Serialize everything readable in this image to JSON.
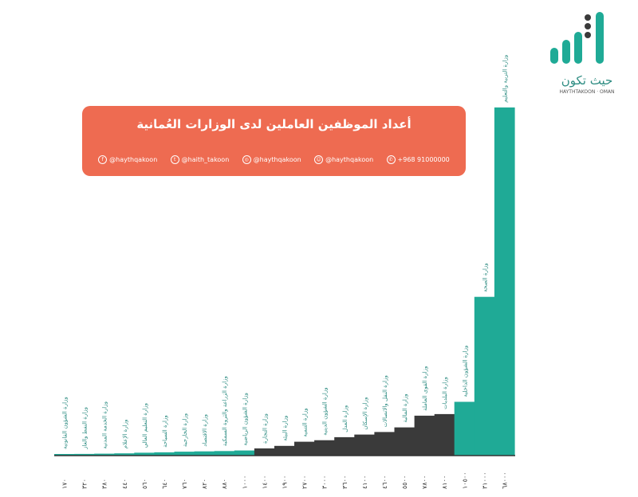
{
  "banner": {
    "title": "أعداد الموظفين العاملين لدى الوزارات العُمانية",
    "contacts": [
      {
        "icon": "whatsapp-icon",
        "text": "+968 91000000"
      },
      {
        "icon": "snapchat-icon",
        "text": "@haythqakoon"
      },
      {
        "icon": "instagram-icon",
        "text": "@haythqakoon"
      },
      {
        "icon": "twitter-icon",
        "text": "@haith_takoon"
      },
      {
        "icon": "facebook-icon",
        "text": "@haythqakoon"
      }
    ]
  },
  "logo": {
    "name": "حيث تكون",
    "sub": "HAYTHTAKOON · OMAN",
    "colors": {
      "teal": "#1faa96",
      "dark": "#3a3a3a"
    }
  },
  "chart_data": {
    "type": "bar",
    "title": "أعداد الموظفين العاملين لدى الوزارات العُمانية",
    "xlabel": "",
    "ylabel": "",
    "grid": false,
    "legend": "none",
    "colors": {
      "teal": "#1faa96",
      "dark": "#3a3a3a"
    },
    "categories": [
      "وزارة الشؤون القانونية",
      "وزارة النفط والغاز",
      "وزارة الخدمة المدنية",
      "وزارة الإعلام",
      "وزارة التعليم العالي",
      "وزارة السياحة",
      "وزارة الخارجية",
      "وزارة الاقتصاد",
      "وزارة الزراعة والثروة السمكية",
      "وزارة الشؤون الرياضية",
      "وزارة التجارة",
      "وزارة البيئة",
      "وزارة التنمية",
      "وزارة الشؤون الدينية",
      "وزارة العدل",
      "وزارة الإسكان",
      "وزارة النقل والاتصالات",
      "وزارة المالية",
      "وزارة القوى العاملة",
      "وزارة البلديات",
      "وزارة الشؤون الداخلية",
      "وزارة الصحة",
      "وزارة التربية والتعليم"
    ],
    "values": [
      170,
      320,
      380,
      440,
      560,
      640,
      760,
      820,
      880,
      1000,
      1400,
      1900,
      2700,
      3000,
      3600,
      4100,
      4600,
      5500,
      7800,
      8100,
      10500,
      31000,
      68000
    ],
    "value_labels": [
      "١٧٠",
      "٣٢٠",
      "٣٨٠",
      "٤٤٠",
      "٥٦٠",
      "٦٤٠",
      "٧٦٠",
      "٨٢٠",
      "٨٨٠",
      "١٠٠٠",
      "١٤٠٠",
      "١٩٠٠",
      "٢٧٠٠",
      "٣٠٠٠",
      "٣٦٠٠",
      "٤١٠٠",
      "٤٦٠٠",
      "٥٥٠٠",
      "٧٨٠٠",
      "٨١٠٠",
      "١٠٥٠٠",
      "٣١٠٠٠",
      "٦٨٠٠٠"
    ],
    "bar_colors": [
      "teal",
      "teal",
      "teal",
      "teal",
      "teal",
      "teal",
      "teal",
      "teal",
      "teal",
      "teal",
      "dark",
      "dark",
      "dark",
      "dark",
      "dark",
      "dark",
      "dark",
      "dark",
      "dark",
      "dark",
      "teal",
      "teal",
      "teal"
    ],
    "ylim": [
      0,
      70000
    ]
  }
}
